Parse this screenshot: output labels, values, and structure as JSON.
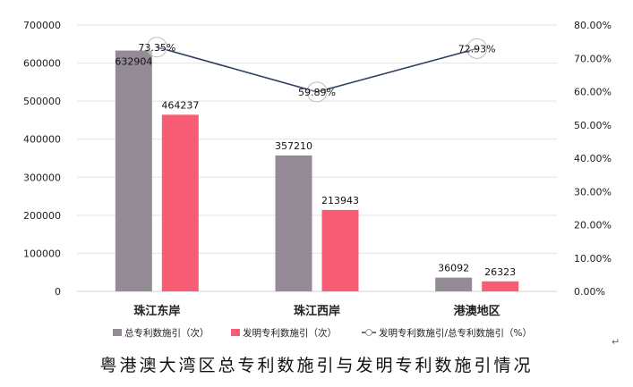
{
  "chart_data": {
    "type": "bar",
    "categories": [
      "珠江东岸",
      "珠江西岸",
      "港澳地区"
    ],
    "series": [
      {
        "name": "总专利数施引（次）",
        "type": "bar",
        "axis": "left",
        "color": "#948b96",
        "values": [
          632904,
          357210,
          36092
        ]
      },
      {
        "name": "发明专利数施引（次）",
        "type": "bar",
        "axis": "left",
        "color": "#f85d75",
        "values": [
          464237,
          213943,
          26323
        ]
      },
      {
        "name": "发明专利数施引/总专利数施引（%）",
        "type": "line",
        "axis": "right",
        "color": "#2e3f63",
        "values": [
          73.35,
          59.89,
          72.93
        ],
        "labels": [
          "73.35%",
          "59.89%",
          "72.93%"
        ]
      }
    ],
    "ylim_left": [
      0,
      700000
    ],
    "yticks_left": [
      "0",
      "100000",
      "200000",
      "300000",
      "400000",
      "500000",
      "600000",
      "700000"
    ],
    "ylim_right": [
      0,
      80
    ],
    "yticks_right": [
      "0.00%",
      "10.00%",
      "20.00%",
      "30.00%",
      "40.00%",
      "50.00%",
      "60.00%",
      "70.00%",
      "80.00%"
    ],
    "grid": true,
    "legend_position": "bottom"
  },
  "caption": "粤港澳大湾区总专利数施引与发明专利数施引情况",
  "para_mark": "↵"
}
